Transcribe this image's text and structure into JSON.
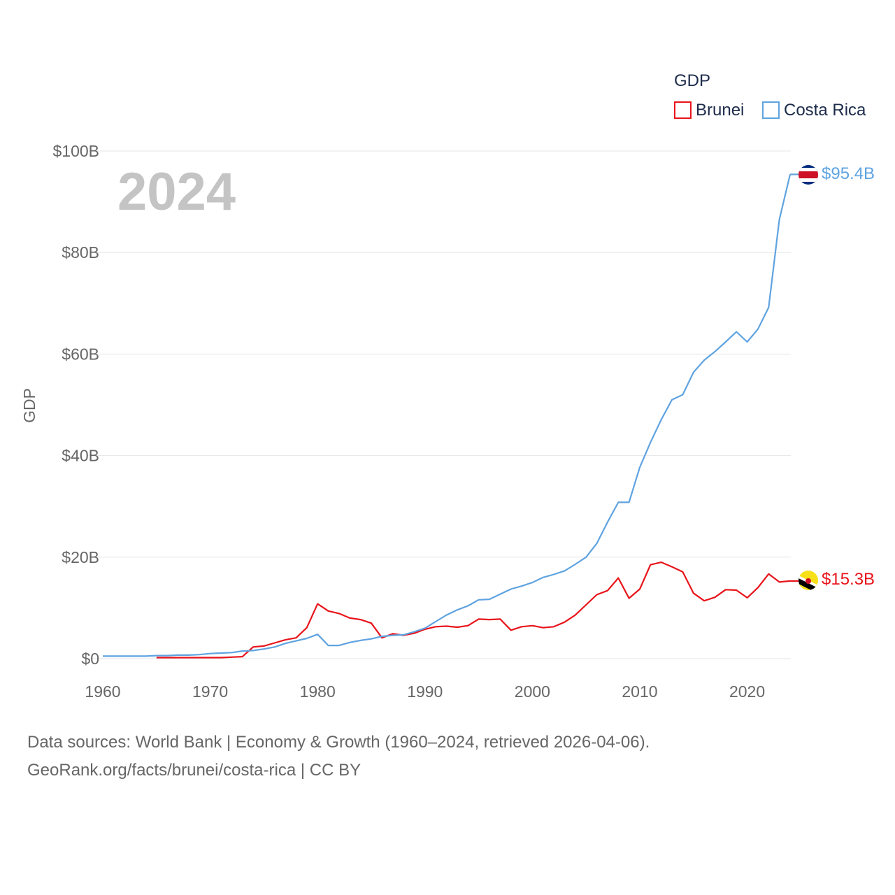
{
  "chart_data": {
    "type": "line",
    "ylabel": "GDP",
    "legend_title": "GDP",
    "legend_position": "top-right",
    "year_label": "2024",
    "xlim": [
      1960,
      2024
    ],
    "ylim": [
      0,
      100
    ],
    "y_unit": "billion USD",
    "x_ticks": [
      1960,
      1970,
      1980,
      1990,
      2000,
      2010,
      2020
    ],
    "y_ticks": [
      {
        "value": 0,
        "label": "$0"
      },
      {
        "value": 20,
        "label": "$20B"
      },
      {
        "value": 40,
        "label": "$40B"
      },
      {
        "value": 60,
        "label": "$60B"
      },
      {
        "value": 80,
        "label": "$80B"
      },
      {
        "value": 100,
        "label": "$100B"
      }
    ],
    "series": [
      {
        "name": "Brunei",
        "color": "#e8141b",
        "flag": "brunei-flag-icon",
        "end_label": "$15.3B",
        "x": [
          1965,
          1966,
          1967,
          1968,
          1969,
          1970,
          1971,
          1972,
          1973,
          1974,
          1975,
          1976,
          1977,
          1978,
          1979,
          1980,
          1981,
          1982,
          1983,
          1984,
          1985,
          1986,
          1987,
          1988,
          1989,
          1990,
          1991,
          1992,
          1993,
          1994,
          1995,
          1996,
          1997,
          1998,
          1999,
          2000,
          2001,
          2002,
          2003,
          2004,
          2005,
          2006,
          2007,
          2008,
          2009,
          2010,
          2011,
          2012,
          2013,
          2014,
          2015,
          2016,
          2017,
          2018,
          2019,
          2020,
          2021,
          2022,
          2023,
          2024
        ],
        "values": [
          0.2,
          0.2,
          0.2,
          0.2,
          0.2,
          0.2,
          0.2,
          0.3,
          0.4,
          2.3,
          2.5,
          3.1,
          3.7,
          4.1,
          6.1,
          10.8,
          9.4,
          8.9,
          8.0,
          7.7,
          7.0,
          4.1,
          4.9,
          4.6,
          5.0,
          5.8,
          6.3,
          6.4,
          6.2,
          6.5,
          7.8,
          7.7,
          7.8,
          5.6,
          6.3,
          6.5,
          6.1,
          6.3,
          7.2,
          8.6,
          10.6,
          12.6,
          13.4,
          15.9,
          11.9,
          13.7,
          18.5,
          19.0,
          18.1,
          17.1,
          12.9,
          11.4,
          12.1,
          13.6,
          13.5,
          12.0,
          14.0,
          16.7,
          15.1,
          15.3
        ]
      },
      {
        "name": "Costa Rica",
        "color": "#5fa3e0",
        "flag": "costa-rica-flag-icon",
        "end_label": "$95.4B",
        "x": [
          1960,
          1961,
          1962,
          1963,
          1964,
          1965,
          1966,
          1967,
          1968,
          1969,
          1970,
          1971,
          1972,
          1973,
          1974,
          1975,
          1976,
          1977,
          1978,
          1979,
          1980,
          1981,
          1982,
          1983,
          1984,
          1985,
          1986,
          1987,
          1988,
          1989,
          1990,
          1991,
          1992,
          1993,
          1994,
          1995,
          1996,
          1997,
          1998,
          1999,
          2000,
          2001,
          2002,
          2003,
          2004,
          2005,
          2006,
          2007,
          2008,
          2009,
          2010,
          2011,
          2012,
          2013,
          2014,
          2015,
          2016,
          2017,
          2018,
          2019,
          2020,
          2021,
          2022,
          2023,
          2024
        ],
        "values": [
          0.5,
          0.5,
          0.5,
          0.5,
          0.5,
          0.6,
          0.6,
          0.7,
          0.7,
          0.8,
          1.0,
          1.1,
          1.2,
          1.5,
          1.6,
          1.9,
          2.3,
          3.0,
          3.5,
          4.0,
          4.8,
          2.6,
          2.6,
          3.2,
          3.6,
          3.9,
          4.4,
          4.6,
          4.7,
          5.3,
          6.0,
          7.3,
          8.6,
          9.6,
          10.4,
          11.6,
          11.7,
          12.7,
          13.7,
          14.3,
          15.0,
          16.0,
          16.6,
          17.3,
          18.6,
          20.0,
          22.7,
          26.9,
          30.8,
          30.8,
          37.7,
          42.6,
          47.1,
          51.0,
          52.0,
          56.4,
          58.8,
          60.5,
          62.4,
          64.4,
          62.4,
          64.9,
          69.2,
          86.5,
          95.4
        ]
      }
    ]
  },
  "footer": {
    "line1": "Data sources: World Bank | Economy & Growth (1960–2024, retrieved 2026-04-06).",
    "line2": "GeoRank.org/facts/brunei/costa-rica | CC BY"
  }
}
